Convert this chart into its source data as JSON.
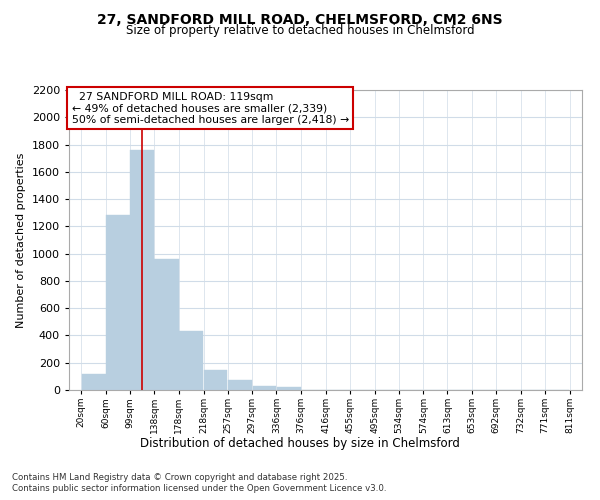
{
  "title1": "27, SANDFORD MILL ROAD, CHELMSFORD, CM2 6NS",
  "title2": "Size of property relative to detached houses in Chelmsford",
  "xlabel": "Distribution of detached houses by size in Chelmsford",
  "ylabel": "Number of detached properties",
  "annotation_title": "27 SANDFORD MILL ROAD: 119sqm",
  "annotation_line1": "← 49% of detached houses are smaller (2,339)",
  "annotation_line2": "50% of semi-detached houses are larger (2,418) →",
  "vline_x": 119,
  "bar_color": "#b8cfe0",
  "vline_color": "#cc0000",
  "annotation_box_facecolor": "#ffffff",
  "annotation_border_color": "#cc0000",
  "footer_line1": "Contains HM Land Registry data © Crown copyright and database right 2025.",
  "footer_line2": "Contains public sector information licensed under the Open Government Licence v3.0.",
  "bins": [
    20,
    60,
    99,
    138,
    178,
    218,
    257,
    297,
    336,
    376,
    416,
    455,
    495,
    534,
    574,
    613,
    653,
    692,
    732,
    771,
    811
  ],
  "bin_labels": [
    "20sqm",
    "60sqm",
    "99sqm",
    "138sqm",
    "178sqm",
    "218sqm",
    "257sqm",
    "297sqm",
    "336sqm",
    "376sqm",
    "416sqm",
    "455sqm",
    "495sqm",
    "534sqm",
    "574sqm",
    "613sqm",
    "653sqm",
    "692sqm",
    "732sqm",
    "771sqm",
    "811sqm"
  ],
  "counts": [
    120,
    1280,
    1760,
    960,
    430,
    150,
    70,
    30,
    20,
    0,
    0,
    0,
    0,
    0,
    0,
    0,
    0,
    0,
    0,
    0
  ],
  "ylim": [
    0,
    2200
  ],
  "yticks": [
    0,
    200,
    400,
    600,
    800,
    1000,
    1200,
    1400,
    1600,
    1800,
    2000,
    2200
  ],
  "background_color": "#ffffff",
  "plot_background": "#ffffff",
  "grid_color": "#d0dce8"
}
